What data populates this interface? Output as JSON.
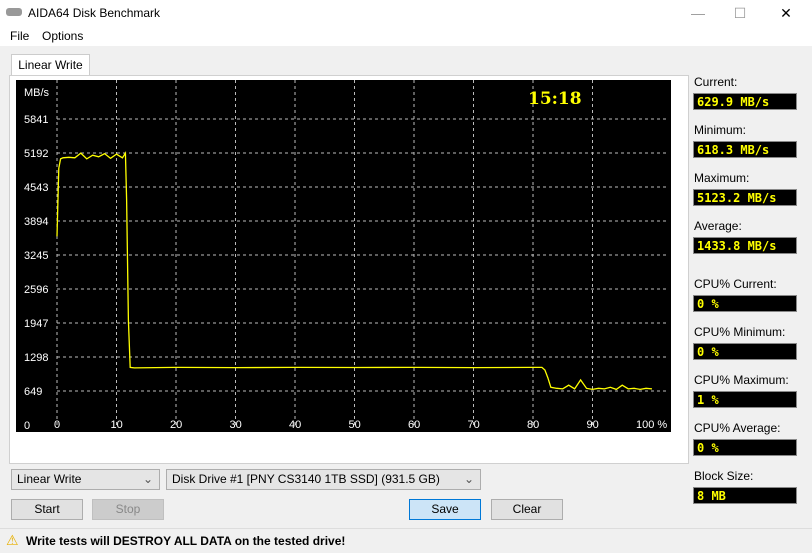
{
  "window": {
    "title": "AIDA64 Disk Benchmark",
    "minimize": "—",
    "maximize": "☐",
    "close": "✕"
  },
  "menu": [
    "File",
    "Options"
  ],
  "tab": "Linear Write",
  "chart_data": {
    "type": "line",
    "ylabel": "MB/s",
    "y_ticks": [
      0,
      649,
      1298,
      1947,
      2596,
      3245,
      3894,
      4543,
      5192,
      5841
    ],
    "x_ticks": [
      "0",
      "10",
      "20",
      "30",
      "40",
      "50",
      "60",
      "70",
      "80",
      "90",
      "100 %"
    ],
    "xlim": [
      0,
      100
    ],
    "ylim": [
      0,
      6490
    ],
    "timer": "15:18",
    "grid": true,
    "line_color": "#ffff00",
    "series": [
      {
        "x": [
          0,
          0.3,
          0.6,
          1,
          2,
          3,
          4,
          5,
          6,
          7,
          8,
          9,
          10,
          11,
          11.5,
          11.7,
          12,
          12.3,
          13,
          20,
          30,
          40,
          50,
          60,
          70,
          80,
          81.5,
          82,
          82.5,
          83,
          84,
          85,
          86,
          87,
          88,
          89,
          90,
          91,
          92,
          93,
          94,
          95,
          96,
          97,
          98,
          99,
          100
        ],
        "y": [
          3600,
          4900,
          5080,
          5100,
          5110,
          5100,
          5190,
          5080,
          5150,
          5120,
          5180,
          5090,
          5170,
          5100,
          5190,
          4300,
          2000,
          1100,
          1090,
          1100,
          1095,
          1100,
          1098,
          1100,
          1095,
          1100,
          1100,
          1050,
          900,
          720,
          700,
          690,
          760,
          690,
          860,
          700,
          680,
          700,
          690,
          720,
          680,
          760,
          690,
          700,
          680,
          700,
          690
        ]
      }
    ]
  },
  "stats": [
    {
      "label": "Current:",
      "value": "629.9 MB/s"
    },
    {
      "label": "Minimum:",
      "value": "618.3 MB/s"
    },
    {
      "label": "Maximum:",
      "value": "5123.2 MB/s"
    },
    {
      "label": "Average:",
      "value": "1433.8 MB/s"
    },
    {
      "label": "CPU% Current:",
      "value": "0 %"
    },
    {
      "label": "CPU% Minimum:",
      "value": "0 %"
    },
    {
      "label": "CPU% Maximum:",
      "value": "1 %"
    },
    {
      "label": "CPU% Average:",
      "value": "0 %"
    },
    {
      "label": "Block Size:",
      "value": "8 MB"
    }
  ],
  "controls": {
    "test_select": "Linear Write",
    "drive_select": "Disk Drive #1  [PNY CS3140 1TB SSD]  (931.5 GB)",
    "start": "Start",
    "stop": "Stop",
    "save": "Save",
    "clear": "Clear"
  },
  "status": {
    "icon": "warning-icon",
    "text": "Write tests will DESTROY ALL DATA on the tested drive!"
  }
}
